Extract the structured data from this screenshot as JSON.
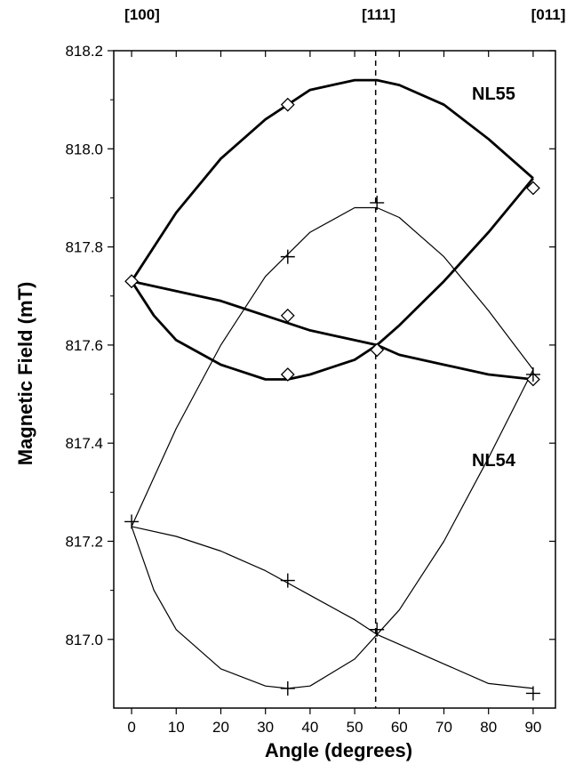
{
  "chart_data": {
    "type": "scatter",
    "title": "",
    "xlabel": "Angle (degrees)",
    "ylabel": "Magnetic Field (mT)",
    "xlim": [
      -4,
      95
    ],
    "ylim": [
      816.86,
      818.2
    ],
    "x_ticks": [
      0,
      10,
      20,
      30,
      40,
      50,
      60,
      70,
      80,
      90
    ],
    "y_ticks": [
      817.0,
      817.2,
      817.4,
      817.6,
      817.8,
      818.0,
      818.2
    ],
    "y_tick_labels": [
      "817.0",
      "817.2",
      "817.4",
      "817.6",
      "817.8",
      "818.0",
      "818.2"
    ],
    "top_axis_labels": [
      {
        "text": "[100]",
        "x": 0
      },
      {
        "text": "[111]",
        "x": 54.7
      },
      {
        "text": "[011]",
        "x": 90
      }
    ],
    "reference_line_x": 54.7,
    "series": [
      {
        "name": "NL55",
        "marker": "diamond",
        "points": [
          [
            0,
            817.73
          ],
          [
            35,
            818.09
          ],
          [
            35,
            817.66
          ],
          [
            35,
            817.54
          ],
          [
            55,
            817.59
          ],
          [
            90,
            817.92
          ],
          [
            90,
            817.53
          ]
        ],
        "curves": [
          [
            [
              0,
              817.73
            ],
            [
              10,
              817.87
            ],
            [
              20,
              817.98
            ],
            [
              30,
              818.06
            ],
            [
              40,
              818.12
            ],
            [
              50,
              818.14
            ],
            [
              55,
              818.14
            ],
            [
              60,
              818.13
            ],
            [
              70,
              818.09
            ],
            [
              80,
              818.02
            ],
            [
              90,
              817.94
            ]
          ],
          [
            [
              0,
              817.73
            ],
            [
              5,
              817.66
            ],
            [
              10,
              817.61
            ],
            [
              20,
              817.56
            ],
            [
              30,
              817.53
            ],
            [
              35,
              817.53
            ],
            [
              40,
              817.54
            ],
            [
              50,
              817.57
            ],
            [
              55,
              817.6
            ],
            [
              60,
              817.64
            ],
            [
              70,
              817.73
            ],
            [
              80,
              817.83
            ],
            [
              90,
              817.94
            ]
          ],
          [
            [
              0,
              817.73
            ],
            [
              10,
              817.71
            ],
            [
              20,
              817.69
            ],
            [
              30,
              817.66
            ],
            [
              40,
              817.63
            ],
            [
              50,
              817.61
            ],
            [
              55,
              817.6
            ],
            [
              60,
              817.58
            ],
            [
              70,
              817.56
            ],
            [
              80,
              817.54
            ],
            [
              90,
              817.53
            ]
          ]
        ]
      },
      {
        "name": "NL54",
        "marker": "cross",
        "points": [
          [
            0,
            817.24
          ],
          [
            35,
            817.78
          ],
          [
            35,
            817.12
          ],
          [
            35,
            816.9
          ],
          [
            55,
            817.89
          ],
          [
            55,
            817.02
          ],
          [
            90,
            817.54
          ],
          [
            90,
            816.89
          ]
        ],
        "curves": [
          [
            [
              0,
              817.23
            ],
            [
              10,
              817.43
            ],
            [
              20,
              817.6
            ],
            [
              30,
              817.74
            ],
            [
              40,
              817.83
            ],
            [
              50,
              817.88
            ],
            [
              55,
              817.88
            ],
            [
              60,
              817.86
            ],
            [
              70,
              817.78
            ],
            [
              80,
              817.67
            ],
            [
              90,
              817.55
            ]
          ],
          [
            [
              0,
              817.23
            ],
            [
              5,
              817.1
            ],
            [
              10,
              817.02
            ],
            [
              20,
              816.94
            ],
            [
              30,
              816.905
            ],
            [
              35,
              816.9
            ],
            [
              40,
              816.905
            ],
            [
              50,
              816.96
            ],
            [
              55,
              817.01
            ],
            [
              60,
              817.06
            ],
            [
              70,
              817.2
            ],
            [
              80,
              817.37
            ],
            [
              90,
              817.55
            ]
          ],
          [
            [
              0,
              817.23
            ],
            [
              10,
              817.21
            ],
            [
              20,
              817.18
            ],
            [
              30,
              817.14
            ],
            [
              40,
              817.09
            ],
            [
              50,
              817.04
            ],
            [
              55,
              817.01
            ],
            [
              60,
              816.99
            ],
            [
              70,
              816.95
            ],
            [
              80,
              816.91
            ],
            [
              90,
              816.9
            ]
          ]
        ]
      }
    ]
  }
}
